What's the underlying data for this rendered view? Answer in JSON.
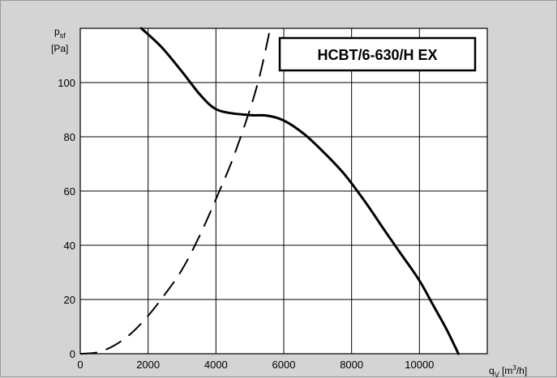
{
  "chart_data": {
    "type": "line",
    "title": "HCBT/6-630/H EX",
    "xlabel": {
      "base": "q",
      "sub": "V",
      "unit_pre": " [m",
      "unit_sup": "3",
      "unit_post": "/h]"
    },
    "ylabel": {
      "base": "p",
      "sub": "sf",
      "unit": "[Pa]"
    },
    "xlim": [
      0,
      12000
    ],
    "ylim": [
      0,
      120
    ],
    "xticks": [
      0,
      2000,
      4000,
      6000,
      8000,
      10000
    ],
    "yticks": [
      0,
      20,
      40,
      60,
      80,
      100
    ],
    "grid": true,
    "legend": "none",
    "series": [
      {
        "style": "solid",
        "color": "#000000",
        "points": [
          [
            1800,
            120
          ],
          [
            2400,
            113
          ],
          [
            3000,
            104
          ],
          [
            3500,
            96
          ],
          [
            3900,
            91
          ],
          [
            4300,
            89
          ],
          [
            5000,
            88
          ],
          [
            5500,
            87.8
          ],
          [
            6000,
            86
          ],
          [
            6600,
            81
          ],
          [
            7200,
            74
          ],
          [
            7800,
            66
          ],
          [
            8400,
            56
          ],
          [
            9000,
            45
          ],
          [
            9500,
            36
          ],
          [
            10000,
            27
          ],
          [
            10400,
            18
          ],
          [
            10800,
            9
          ],
          [
            11150,
            0
          ]
        ]
      },
      {
        "style": "dashed",
        "color": "#000000",
        "points": [
          [
            0,
            0
          ],
          [
            500,
            0.5
          ],
          [
            1000,
            3
          ],
          [
            1500,
            7.5
          ],
          [
            2000,
            14
          ],
          [
            2500,
            22
          ],
          [
            3000,
            31
          ],
          [
            3500,
            43
          ],
          [
            4000,
            57
          ],
          [
            4500,
            72
          ],
          [
            5000,
            90
          ],
          [
            5300,
            103
          ],
          [
            5600,
            120
          ]
        ]
      }
    ]
  }
}
